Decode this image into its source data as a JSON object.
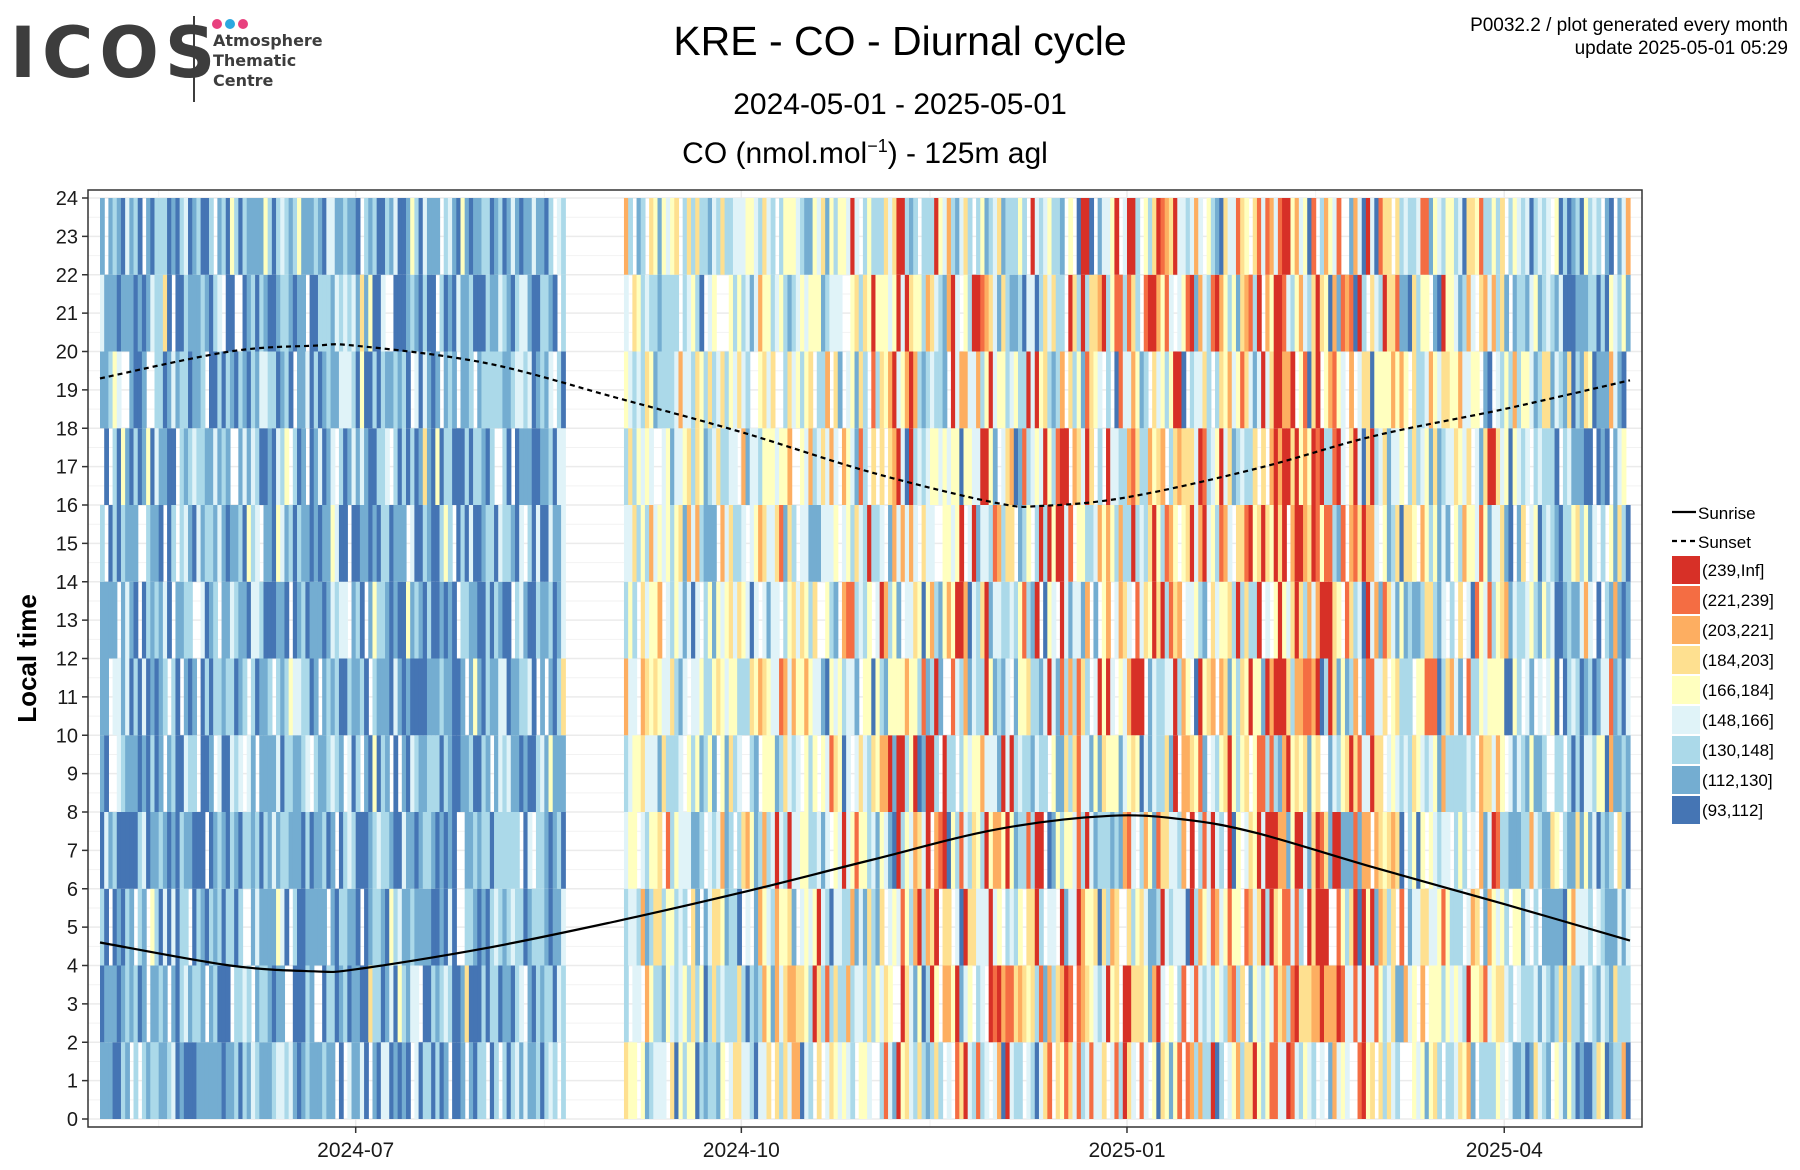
{
  "logo": {
    "wordmark": "ICOS",
    "lines": [
      "Atmosphere",
      "Thematic",
      "Centre"
    ],
    "dot_colors": [
      "#e8417e",
      "#2aa8e0",
      "#e8417e"
    ]
  },
  "header": {
    "title": "KRE - CO - Diurnal cycle",
    "period": "2024-05-01 - 2025-05-01",
    "variable_prefix": "CO (nmol.mol",
    "variable_exponent": "−1",
    "variable_suffix": ") - 125m agl",
    "info_line1": "P0032.2 / plot generated every month",
    "info_line2": "update  2025-05-01 05:29"
  },
  "chart_data": {
    "type": "heatmap",
    "title": "KRE - CO - Diurnal cycle",
    "subtitle": "2024-05-01 - 2025-05-01",
    "variable": "CO (nmol.mol−1) - 125m agl",
    "xlabel": "",
    "ylabel": "Local time",
    "x_range": [
      "2024-05-01",
      "2025-05-01"
    ],
    "x_ticks": [
      {
        "date": "2024-07-01",
        "label": "2024-07"
      },
      {
        "date": "2024-10-01",
        "label": "2024-10"
      },
      {
        "date": "2025-01-01",
        "label": "2025-01"
      },
      {
        "date": "2025-04-01",
        "label": "2025-04"
      }
    ],
    "y_range": [
      0,
      24
    ],
    "y_ticks": [
      0,
      1,
      2,
      3,
      4,
      5,
      6,
      7,
      8,
      9,
      10,
      11,
      12,
      13,
      14,
      15,
      16,
      17,
      18,
      19,
      20,
      21,
      22,
      23,
      24
    ],
    "grid": true,
    "data_gap": [
      "2024-08-20",
      "2024-09-03"
    ],
    "legend_position": "right",
    "line_legend": [
      "Sunrise",
      "Sunset"
    ],
    "color_bins": [
      {
        "label": "(239,Inf]",
        "color": "#d73027"
      },
      {
        "label": "(221,239]",
        "color": "#f46d43"
      },
      {
        "label": "(203,221]",
        "color": "#fdae61"
      },
      {
        "label": "(184,203]",
        "color": "#fee090"
      },
      {
        "label": "(166,184]",
        "color": "#ffffbf"
      },
      {
        "label": "(148,166]",
        "color": "#e0f3f8"
      },
      {
        "label": "(130,148]",
        "color": "#abd9e9"
      },
      {
        "label": "(112,130]",
        "color": "#74add1"
      },
      {
        "label": "(93,112]",
        "color": "#4575b4"
      }
    ],
    "sunrise": {
      "dates": [
        "2024-05-01",
        "2024-06-01",
        "2024-06-21",
        "2024-07-01",
        "2024-08-01",
        "2024-09-01",
        "2024-10-01",
        "2024-11-01",
        "2024-12-01",
        "2024-12-28",
        "2025-01-15",
        "2025-02-01",
        "2025-03-01",
        "2025-04-01",
        "2025-05-01"
      ],
      "hours": [
        4.6,
        4.0,
        3.85,
        3.9,
        4.45,
        5.15,
        5.9,
        6.75,
        7.55,
        7.9,
        7.8,
        7.45,
        6.55,
        5.6,
        4.65
      ]
    },
    "sunset": {
      "dates": [
        "2024-05-01",
        "2024-06-01",
        "2024-06-21",
        "2024-07-01",
        "2024-08-01",
        "2024-09-01",
        "2024-10-01",
        "2024-11-01",
        "2024-12-01",
        "2024-12-12",
        "2025-01-01",
        "2025-02-01",
        "2025-03-01",
        "2025-04-01",
        "2025-05-01"
      ],
      "hours": [
        19.3,
        20.0,
        20.15,
        20.15,
        19.7,
        18.8,
        17.9,
        16.85,
        16.05,
        15.98,
        16.2,
        16.95,
        17.8,
        18.5,
        19.25
      ]
    },
    "monthly_bin_weights": {
      "note_units": "relative frequency of each color bin per month, bins ordered low (93,112] to high (239,Inf]",
      "2024-05": [
        3,
        5,
        4,
        1,
        0.2,
        0,
        0,
        0,
        0
      ],
      "2024-06": [
        4,
        5,
        3,
        1,
        0.2,
        0,
        0,
        0,
        0
      ],
      "2024-07": [
        4,
        5,
        3,
        1,
        0.3,
        0.05,
        0,
        0,
        0
      ],
      "2024-08": [
        2,
        4,
        5,
        2,
        0.3,
        0.05,
        0,
        0,
        0
      ],
      "2024-09": [
        0.2,
        1,
        4,
        4,
        3,
        2,
        0.6,
        0.1,
        0
      ],
      "2024-10": [
        0.3,
        1,
        4,
        4,
        3,
        2,
        1,
        0.5,
        0.3
      ],
      "2024-11": [
        0.3,
        1,
        3,
        3,
        2,
        1.5,
        1,
        1,
        2
      ],
      "2024-12": [
        0.3,
        1,
        3,
        3,
        2,
        1.5,
        1,
        1,
        1.5
      ],
      "2025-01": [
        0.2,
        1,
        2,
        2,
        2,
        2,
        1.5,
        1.5,
        2
      ],
      "2025-02": [
        0.2,
        0.6,
        1.5,
        1.5,
        1.5,
        2,
        1.5,
        2,
        3
      ],
      "2025-03": [
        0.3,
        1.5,
        3,
        2,
        3,
        2,
        1,
        0.5,
        0.3
      ],
      "2025-04": [
        1,
        3,
        4,
        2,
        1.5,
        0.5,
        0.2,
        0.1,
        0
      ]
    }
  }
}
